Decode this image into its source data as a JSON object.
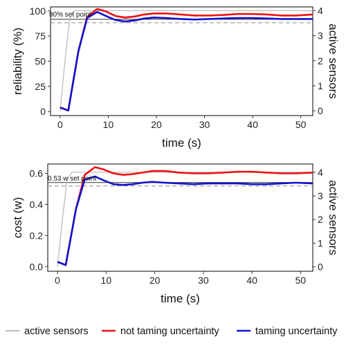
{
  "chart_data": [
    {
      "type": "line",
      "xlabel": "time (s)",
      "ylabel": "reliability (%)",
      "y2label": "active sensors",
      "xlim": [
        -2,
        52.5
      ],
      "ylim": [
        -4,
        104
      ],
      "y2lim": [
        -0.19,
        4.15
      ],
      "xticks": [
        0,
        10,
        20,
        30,
        40,
        50
      ],
      "yticks": [
        0,
        25,
        50,
        75,
        100
      ],
      "y2ticks": [
        0,
        1,
        2,
        3,
        4
      ],
      "setpoint": {
        "value": 90,
        "label": "90% set point"
      },
      "series": [
        {
          "name": "active sensors",
          "axis": "right",
          "color": "#bbbbbb",
          "x": [
            0,
            1,
            2,
            3,
            52.5
          ],
          "y": [
            0,
            2,
            3.7,
            4,
            4
          ]
        },
        {
          "name": "not taming uncertainty",
          "axis": "left",
          "color": "#ee1111",
          "x": [
            0,
            1.7,
            3.8,
            5.6,
            7.7,
            9.5,
            11.5,
            13.5,
            15.5,
            17.5,
            19.5,
            22,
            25,
            28,
            31,
            34,
            37,
            40,
            43,
            46,
            49,
            52.5
          ],
          "y": [
            4,
            1,
            60,
            94,
            102,
            99.5,
            95,
            93.5,
            94.5,
            96.5,
            97.5,
            97.5,
            96.5,
            95.5,
            95.5,
            96,
            97,
            97,
            96.5,
            95.5,
            95.5,
            96.5
          ]
        },
        {
          "name": "taming uncertainty",
          "axis": "left",
          "color": "#1111cc",
          "x": [
            0,
            1.7,
            3.8,
            5.6,
            7.7,
            9.5,
            11.5,
            13.5,
            15.5,
            17.5,
            19.5,
            22,
            25,
            28,
            31,
            34,
            37,
            40,
            43,
            46,
            49,
            52.5
          ],
          "y": [
            4,
            1,
            60,
            93,
            99,
            95,
            91,
            89.5,
            90.5,
            92.5,
            93.5,
            93,
            92,
            91.5,
            92,
            92.5,
            93,
            93,
            92.5,
            92,
            92,
            92
          ]
        }
      ]
    },
    {
      "type": "line",
      "xlabel": "time (s)",
      "ylabel": "cost (w)",
      "y2label": "active sensors",
      "xlim": [
        -2,
        52.5
      ],
      "ylim": [
        -0.03,
        0.66
      ],
      "y2lim": [
        -0.19,
        4.35
      ],
      "xticks": [
        0,
        10,
        20,
        30,
        40,
        50
      ],
      "yticks": [
        0.0,
        0.2,
        0.4,
        0.6
      ],
      "y2ticks": [
        0,
        1,
        2,
        3,
        4
      ],
      "setpoint": {
        "value": 0.53,
        "label": "0.53 w set point"
      },
      "series": [
        {
          "name": "active sensors",
          "axis": "right",
          "color": "#bbbbbb",
          "x": [
            0,
            1,
            2,
            3,
            52.5
          ],
          "y": [
            0,
            2,
            3.7,
            4,
            4
          ]
        },
        {
          "name": "not taming uncertainty",
          "axis": "left",
          "color": "#ee1111",
          "x": [
            0,
            1.7,
            3.8,
            5.6,
            7.7,
            9.5,
            11.5,
            13.5,
            15.5,
            17.5,
            19.5,
            22,
            25,
            28,
            31,
            34,
            37,
            40,
            43,
            46,
            49,
            52.5
          ],
          "y": [
            0.03,
            0.01,
            0.37,
            0.59,
            0.64,
            0.625,
            0.6,
            0.59,
            0.595,
            0.605,
            0.615,
            0.615,
            0.605,
            0.6,
            0.6,
            0.605,
            0.61,
            0.61,
            0.605,
            0.6,
            0.6,
            0.605
          ]
        },
        {
          "name": "taming uncertainty",
          "axis": "left",
          "color": "#1111cc",
          "x": [
            0,
            1.7,
            3.8,
            5.6,
            7.7,
            9.5,
            11.5,
            13.5,
            15.5,
            17.5,
            19.5,
            22,
            25,
            28,
            31,
            34,
            37,
            40,
            43,
            46,
            49,
            52.5
          ],
          "y": [
            0.03,
            0.01,
            0.37,
            0.56,
            0.58,
            0.555,
            0.53,
            0.525,
            0.53,
            0.54,
            0.545,
            0.54,
            0.535,
            0.53,
            0.535,
            0.535,
            0.535,
            0.53,
            0.53,
            0.535,
            0.54,
            0.535
          ]
        }
      ]
    }
  ],
  "legend": {
    "position": "bottom",
    "items": [
      {
        "label": "active sensors",
        "color": "#bbbbbb"
      },
      {
        "label": "not taming uncertainty",
        "color": "#ee1111"
      },
      {
        "label": "taming uncertainty",
        "color": "#1111cc"
      }
    ]
  }
}
